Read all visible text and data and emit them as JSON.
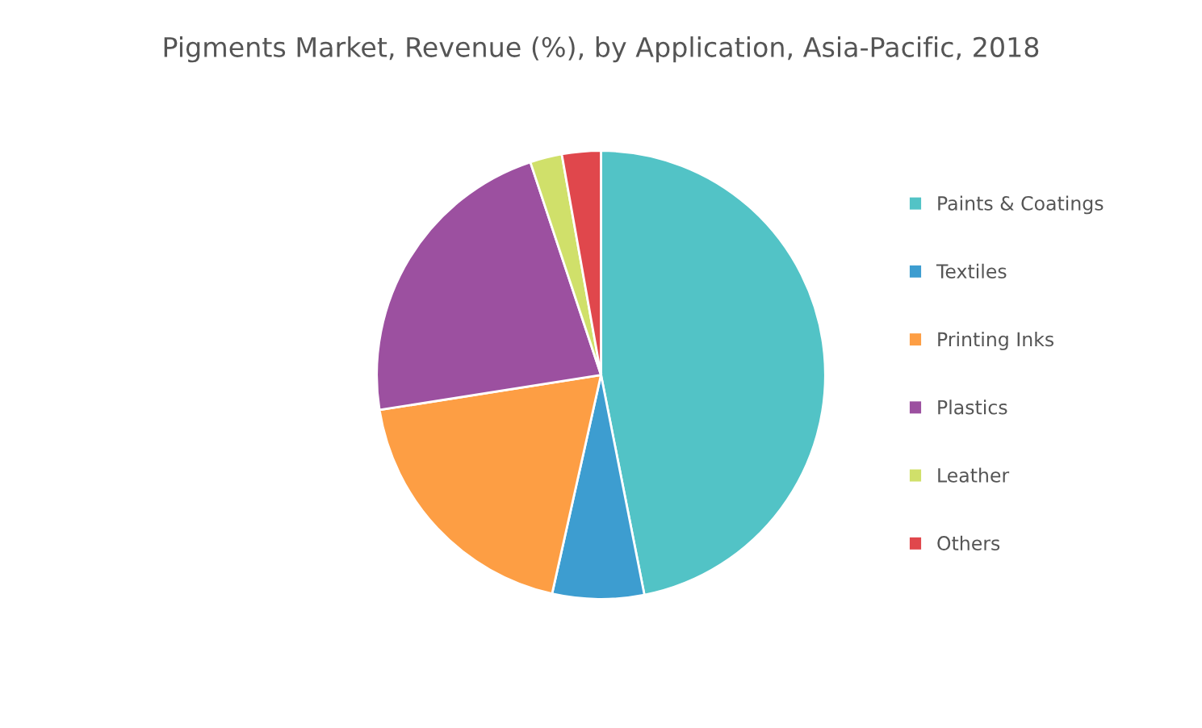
{
  "chart_data": {
    "type": "pie",
    "title": "Pigments Market, Revenue (%), by Application, Asia-Pacific, 2018",
    "categories": [
      "Paints & Coatings",
      "Textiles",
      "Printing Inks",
      "Plastics",
      "Leather",
      "Others"
    ],
    "values": [
      46.9,
      6.6,
      19.0,
      22.4,
      2.3,
      2.8
    ],
    "colors": [
      "#52c3c6",
      "#3d9dd0",
      "#fd9e44",
      "#9c50a0",
      "#d0e06a",
      "#e0474c"
    ],
    "legend": "right"
  }
}
